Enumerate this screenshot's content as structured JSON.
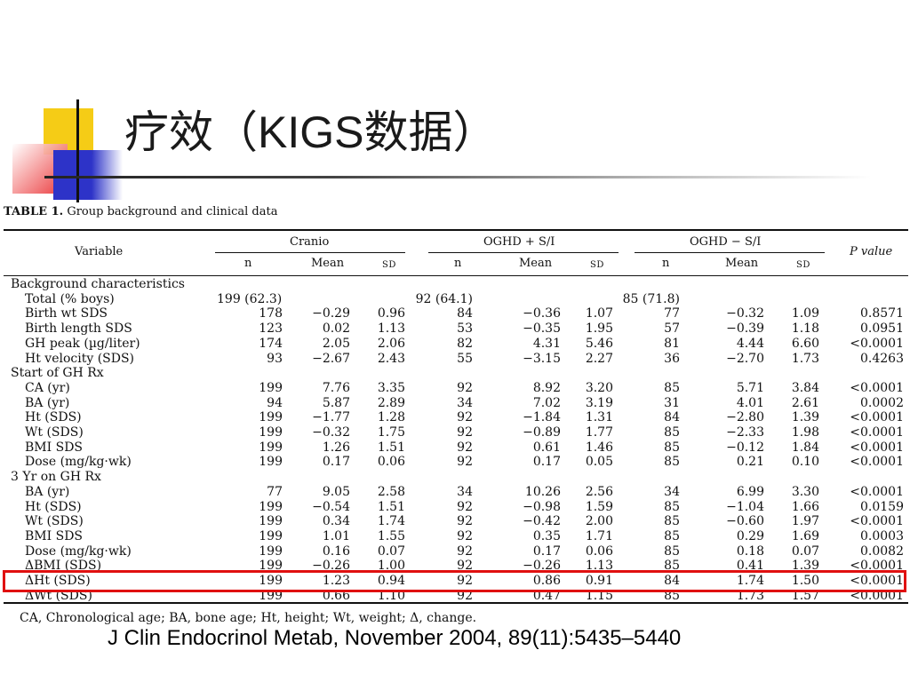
{
  "slide": {
    "title_cn_1": "疗效（",
    "title_en": "KIGS",
    "title_cn_2": "数据）"
  },
  "table": {
    "caption_label": "TABLE 1.",
    "caption_text": "Group background and clinical data",
    "header": {
      "variable": "Variable",
      "groups": [
        "Cranio",
        "OGHD + S/I",
        "OGHD − S/I"
      ],
      "sub": [
        "n",
        "Mean",
        "SD"
      ],
      "p_value": "P value"
    },
    "rows": [
      {
        "type": "section",
        "label": "Background characteristics"
      },
      {
        "type": "data",
        "label": "Total (% boys)",
        "v": [
          "199 (62.3)",
          "",
          "",
          "92 (64.1)",
          "",
          "",
          "85 (71.8)",
          "",
          "",
          ""
        ]
      },
      {
        "type": "data",
        "label": "Birth wt SDS",
        "v": [
          "178",
          "−0.29",
          "0.96",
          "84",
          "−0.36",
          "1.07",
          "77",
          "−0.32",
          "1.09",
          "0.8571"
        ]
      },
      {
        "type": "data",
        "label": "Birth length SDS",
        "v": [
          "123",
          "0.02",
          "1.13",
          "53",
          "−0.35",
          "1.95",
          "57",
          "−0.39",
          "1.18",
          "0.0951"
        ]
      },
      {
        "type": "data",
        "label": "GH peak (µg/liter)",
        "v": [
          "174",
          "2.05",
          "2.06",
          "82",
          "4.31",
          "5.46",
          "81",
          "4.44",
          "6.60",
          "<0.0001"
        ]
      },
      {
        "type": "data",
        "label": "Ht velocity (SDS)",
        "v": [
          "93",
          "−2.67",
          "2.43",
          "55",
          "−3.15",
          "2.27",
          "36",
          "−2.70",
          "1.73",
          "0.4263"
        ]
      },
      {
        "type": "section",
        "label": "Start of GH Rx"
      },
      {
        "type": "data",
        "label": "CA (yr)",
        "v": [
          "199",
          "7.76",
          "3.35",
          "92",
          "8.92",
          "3.20",
          "85",
          "5.71",
          "3.84",
          "<0.0001"
        ]
      },
      {
        "type": "data",
        "label": "BA (yr)",
        "v": [
          "94",
          "5.87",
          "2.89",
          "34",
          "7.02",
          "3.19",
          "31",
          "4.01",
          "2.61",
          "0.0002"
        ]
      },
      {
        "type": "data",
        "label": "Ht (SDS)",
        "v": [
          "199",
          "−1.77",
          "1.28",
          "92",
          "−1.84",
          "1.31",
          "84",
          "−2.80",
          "1.39",
          "<0.0001"
        ]
      },
      {
        "type": "data",
        "label": "Wt (SDS)",
        "v": [
          "199",
          "−0.32",
          "1.75",
          "92",
          "−0.89",
          "1.77",
          "85",
          "−2.33",
          "1.98",
          "<0.0001"
        ]
      },
      {
        "type": "data",
        "label": "BMI SDS",
        "v": [
          "199",
          "1.26",
          "1.51",
          "92",
          "0.61",
          "1.46",
          "85",
          "−0.12",
          "1.84",
          "<0.0001"
        ]
      },
      {
        "type": "data",
        "label": "Dose (mg/kg·wk)",
        "v": [
          "199",
          "0.17",
          "0.06",
          "92",
          "0.17",
          "0.05",
          "85",
          "0.21",
          "0.10",
          "<0.0001"
        ]
      },
      {
        "type": "section",
        "label": "3 Yr on GH Rx"
      },
      {
        "type": "data",
        "label": "BA (yr)",
        "v": [
          "77",
          "9.05",
          "2.58",
          "34",
          "10.26",
          "2.56",
          "34",
          "6.99",
          "3.30",
          "<0.0001"
        ]
      },
      {
        "type": "data",
        "label": "Ht (SDS)",
        "v": [
          "199",
          "−0.54",
          "1.51",
          "92",
          "−0.98",
          "1.59",
          "85",
          "−1.04",
          "1.66",
          "0.0159"
        ]
      },
      {
        "type": "data",
        "label": "Wt (SDS)",
        "v": [
          "199",
          "0.34",
          "1.74",
          "92",
          "−0.42",
          "2.00",
          "85",
          "−0.60",
          "1.97",
          "<0.0001"
        ]
      },
      {
        "type": "data",
        "label": "BMI SDS",
        "v": [
          "199",
          "1.01",
          "1.55",
          "92",
          "0.35",
          "1.71",
          "85",
          "0.29",
          "1.69",
          "0.0003"
        ]
      },
      {
        "type": "data",
        "label": "Dose (mg/kg·wk)",
        "v": [
          "199",
          "0.16",
          "0.07",
          "92",
          "0.17",
          "0.06",
          "85",
          "0.18",
          "0.07",
          "0.0082"
        ]
      },
      {
        "type": "data",
        "label": "ΔBMI (SDS)",
        "v": [
          "199",
          "−0.26",
          "1.00",
          "92",
          "−0.26",
          "1.13",
          "85",
          "0.41",
          "1.39",
          "<0.0001"
        ]
      },
      {
        "type": "data",
        "label": "ΔHt (SDS)",
        "v": [
          "199",
          "1.23",
          "0.94",
          "92",
          "0.86",
          "0.91",
          "84",
          "1.74",
          "1.50",
          "<0.0001"
        ],
        "highlighted": true
      },
      {
        "type": "data",
        "label": "ΔWt (SDS)",
        "v": [
          "199",
          "0.66",
          "1.10",
          "92",
          "0.47",
          "1.15",
          "85",
          "1.73",
          "1.57",
          "<0.0001"
        ]
      }
    ],
    "footnote": "CA, Chronological age; BA, bone age; Ht, height; Wt, weight; Δ, change."
  },
  "citation": "J Clin Endocrinol Metab, November 2004, 89(11):5435–5440",
  "colors": {
    "highlight_border": "#e01010",
    "accent_yellow": "#f5cc16",
    "accent_blue": "#2d33c8",
    "accent_red": "#e8262a"
  }
}
